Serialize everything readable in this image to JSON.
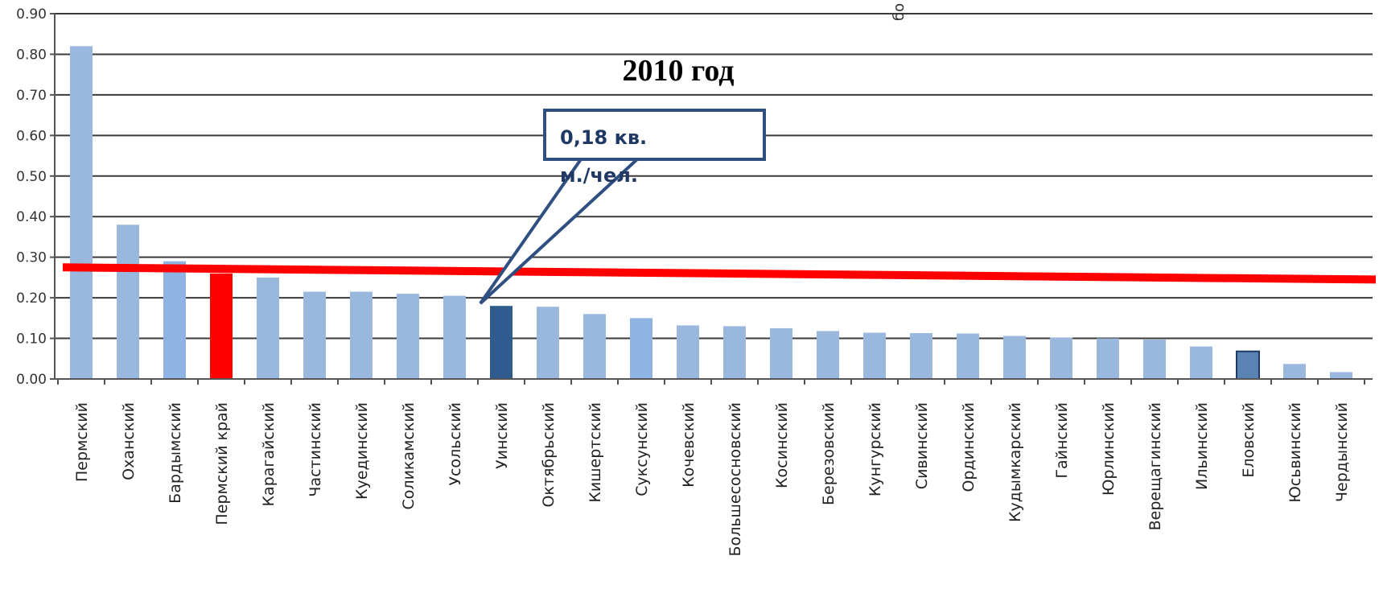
{
  "chart_data": {
    "type": "bar",
    "title": "2010 год",
    "ylim": [
      0,
      0.9
    ],
    "yticks": [
      "0.00",
      "0.10",
      "0.20",
      "0.30",
      "0.40",
      "0.50",
      "0.60",
      "0.70",
      "0.80",
      "0.90"
    ],
    "grid": true,
    "categories": [
      "Пермский",
      "Оханский",
      "Бардымский",
      "Пермский край",
      "Карагайский",
      "Частинский",
      "Куединский",
      "Соликамский",
      "Усольский",
      "Уинский",
      "Октябрьский",
      "Кишертский",
      "Суксунский",
      "Кочевский",
      "Большесосновский",
      "Косинский",
      "Березовский",
      "Кунгурский",
      "Сивинский",
      "Ординский",
      "Кудымкарский",
      "Гайнский",
      "Юрлинский",
      "Верещагинский",
      "Ильинский",
      "Еловский",
      "Юсьвинский",
      "Чердынский"
    ],
    "values": [
      0.82,
      0.38,
      0.29,
      0.26,
      0.25,
      0.215,
      0.215,
      0.21,
      0.205,
      0.18,
      0.178,
      0.16,
      0.15,
      0.132,
      0.13,
      0.125,
      0.118,
      0.114,
      0.113,
      0.112,
      0.106,
      0.102,
      0.1,
      0.097,
      0.08,
      0.068,
      0.037,
      0.017
    ],
    "bar_colors": [
      "#9ab8dd",
      "#9ab8dd",
      "#8fb4e3",
      "#ff0000",
      "#9ab8dd",
      "#9ab8dd",
      "#9ab8dd",
      "#9ab8dd",
      "#9ab8dd",
      "#2f5b8f",
      "#9ab8dd",
      "#9ab8dd",
      "#8fb4e3",
      "#9ab8dd",
      "#9ab8dd",
      "#9ab8dd",
      "#9ab8dd",
      "#9ab8dd",
      "#9ab8dd",
      "#9ab8dd",
      "#9ab8dd",
      "#9ab8dd",
      "#9ab8dd",
      "#9ab8dd",
      "#9ab8dd",
      "#5a82b3",
      "#9ab8dd",
      "#9ab8dd"
    ],
    "reference_line": {
      "y_start": 0.275,
      "y_end": 0.245,
      "color": "#ff0000"
    },
    "callout": {
      "lines": [
        "0,18 кв.",
        "м./чел."
      ],
      "target_category": "Уинский",
      "color": "#1f3864"
    },
    "stray_glyph": "бо"
  }
}
